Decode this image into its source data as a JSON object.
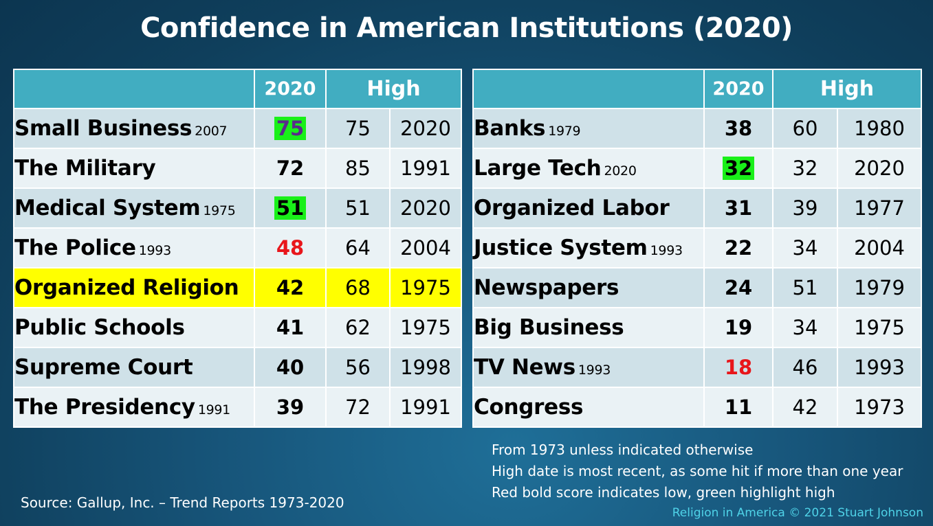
{
  "title": "Confidence in American Institutions (2020)",
  "headers": {
    "score": "2020",
    "high": "High"
  },
  "left_rows": [
    {
      "name": "Small Business",
      "since": "2007",
      "score": "75",
      "high": "75",
      "high_year": "2020",
      "mark": "top",
      "row_highlight": false
    },
    {
      "name": "The Military",
      "since": "",
      "score": "72",
      "high": "85",
      "high_year": "1991",
      "mark": "",
      "row_highlight": false
    },
    {
      "name": "Medical System",
      "since": "1975",
      "score": "51",
      "high": "51",
      "high_year": "2020",
      "mark": "top",
      "row_highlight": false
    },
    {
      "name": "The Police",
      "since": "1993",
      "score": "48",
      "high": "64",
      "high_year": "2004",
      "mark": "low",
      "row_highlight": false
    },
    {
      "name": "Organized Religion",
      "since": "",
      "score": "42",
      "high": "68",
      "high_year": "1975",
      "mark": "",
      "row_highlight": true
    },
    {
      "name": "Public Schools",
      "since": "",
      "score": "41",
      "high": "62",
      "high_year": "1975",
      "mark": "",
      "row_highlight": false
    },
    {
      "name": "Supreme Court",
      "since": "",
      "score": "40",
      "high": "56",
      "high_year": "1998",
      "mark": "",
      "row_highlight": false
    },
    {
      "name": "The Presidency",
      "since": "1991",
      "score": "39",
      "high": "72",
      "high_year": "1991",
      "mark": "",
      "row_highlight": false
    }
  ],
  "right_rows": [
    {
      "name": "Banks",
      "since": "1979",
      "score": "38",
      "high": "60",
      "high_year": "1980",
      "mark": "",
      "row_highlight": false
    },
    {
      "name": "Large Tech",
      "since": "2020",
      "score": "32",
      "high": "32",
      "high_year": "2020",
      "mark": "top",
      "row_highlight": false
    },
    {
      "name": "Organized Labor",
      "since": "",
      "score": "31",
      "high": "39",
      "high_year": "1977",
      "mark": "",
      "row_highlight": false
    },
    {
      "name": "Justice System",
      "since": "1993",
      "score": "22",
      "high": "34",
      "high_year": "2004",
      "mark": "",
      "row_highlight": false
    },
    {
      "name": "Newspapers",
      "since": "",
      "score": "24",
      "high": "51",
      "high_year": "1979",
      "mark": "",
      "row_highlight": false
    },
    {
      "name": "Big Business",
      "since": "",
      "score": "19",
      "high": "34",
      "high_year": "1975",
      "mark": "",
      "row_highlight": false
    },
    {
      "name": "TV News",
      "since": "1993",
      "score": "18",
      "high": "46",
      "high_year": "1993",
      "mark": "low",
      "row_highlight": false
    },
    {
      "name": "Congress",
      "since": "",
      "score": "11",
      "high": "42",
      "high_year": "1973",
      "mark": "",
      "row_highlight": false
    }
  ],
  "notes": [
    "From 1973 unless indicated otherwise",
    "High date is most recent, as some hit if more than one year",
    "Red bold score indicates low, green highlight high"
  ],
  "source": "Source: Gallup, Inc. – Trend Reports 1973-2020",
  "credit": "Religion in America © 2021 Stuart Johnson",
  "colors": {
    "header_bg": "#41adc1",
    "row_light": "#eaf2f5",
    "row_dark": "#cfe1e8",
    "row_highlight": "#ffff00",
    "high_mark": "#19f019",
    "low_mark": "#e8161b",
    "credit_text": "#4fd3e8"
  }
}
